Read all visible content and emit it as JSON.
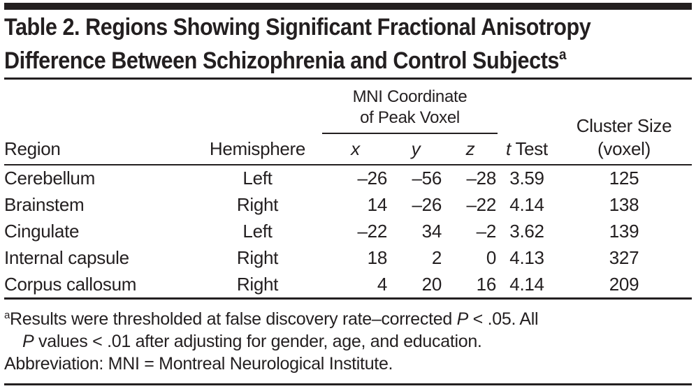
{
  "title": {
    "line1": "Table 2. Regions Showing Significant Fractional Anisotropy",
    "line2": "Difference Between Schizophrenia and Control Subjects",
    "superscript": "a"
  },
  "table": {
    "spanner": {
      "line1": "MNI Coordinate",
      "line2": "of Peak Voxel"
    },
    "cluster_header": {
      "line1": "Cluster Size",
      "line2": "(voxel)"
    },
    "columns": {
      "region": "Region",
      "hemisphere": "Hemisphere",
      "x": "x",
      "y": "y",
      "z": "z",
      "t_italic": "t",
      "t_rest": " Test"
    },
    "rows": [
      {
        "region": "Cerebellum",
        "hemisphere": "Left",
        "x": "–26",
        "y": "–56",
        "z": "–28",
        "t": "3.59",
        "cluster": "125"
      },
      {
        "region": "Brainstem",
        "hemisphere": "Right",
        "x": "14",
        "y": "–26",
        "z": "–22",
        "t": "4.14",
        "cluster": "138"
      },
      {
        "region": "Cingulate",
        "hemisphere": "Left",
        "x": "–22",
        "y": "34",
        "z": "–2",
        "t": "3.62",
        "cluster": "139"
      },
      {
        "region": "Internal capsule",
        "hemisphere": "Right",
        "x": "18",
        "y": "2",
        "z": "0",
        "t": "4.13",
        "cluster": "327"
      },
      {
        "region": "Corpus callosum",
        "hemisphere": "Right",
        "x": "4",
        "y": "20",
        "z": "16",
        "t": "4.14",
        "cluster": "209"
      }
    ]
  },
  "footnote": {
    "marker": "a",
    "line1_pre": "Results were thresholded at false discovery rate–corrected ",
    "line1_italic": "P",
    "line1_post": " < .05. All",
    "line2_italic": "P",
    "line2_post": " values < .01 after adjusting for gender, age, and education.",
    "line3": "Abbreviation: MNI = Montreal Neurological Institute."
  },
  "colors": {
    "text": "#231f20",
    "rule": "#231f20",
    "background": "#ffffff"
  }
}
